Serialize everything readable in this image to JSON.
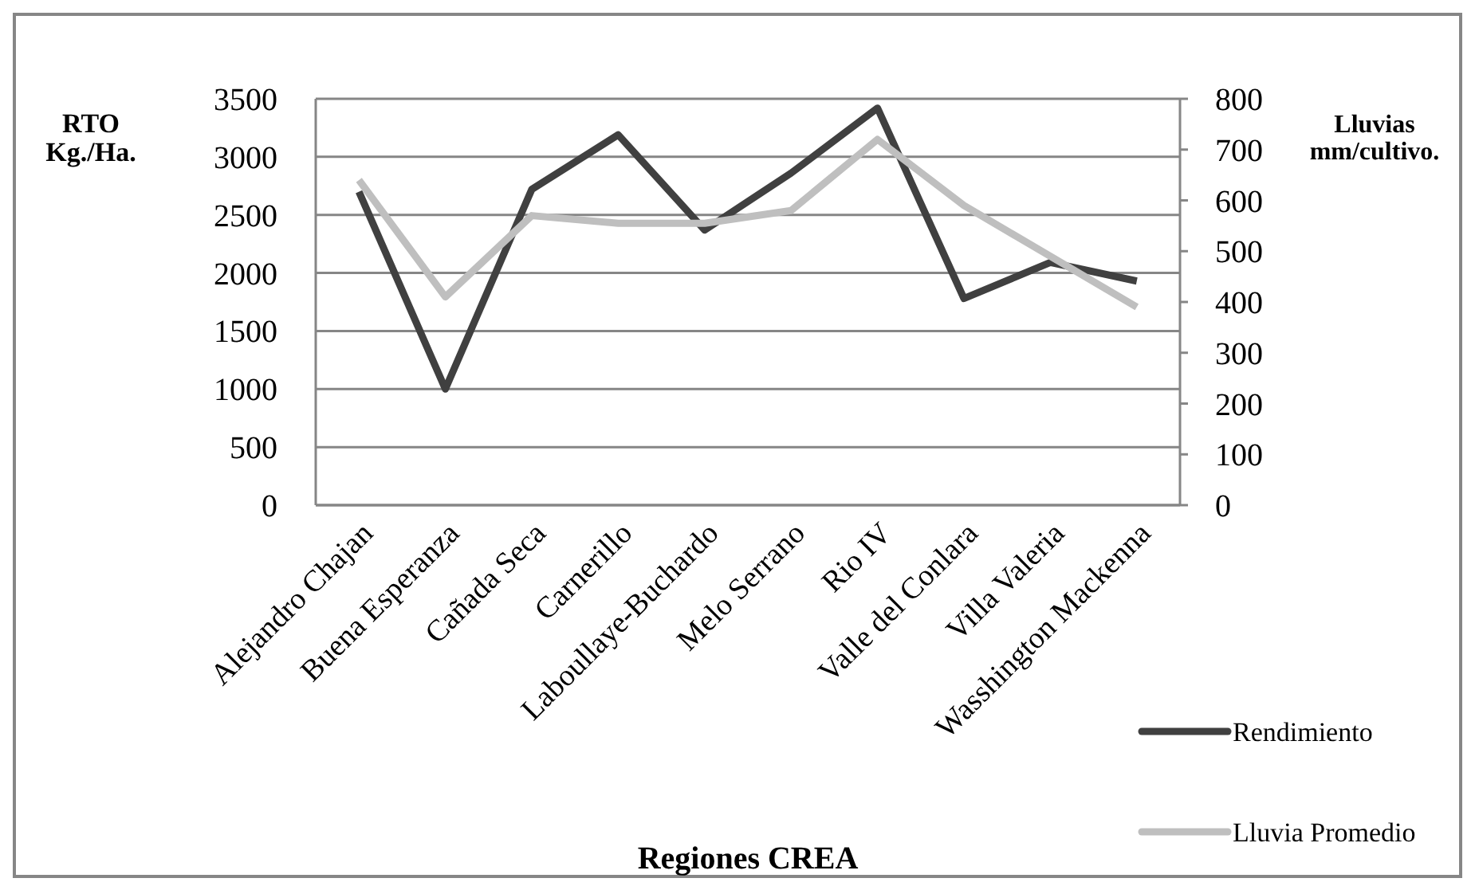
{
  "chart_data": {
    "type": "line",
    "xlabel": "Regiones CREA",
    "ylabel": "RTO\nKg./Ha.",
    "y2label": "Lluvias\nmm/cultivo.",
    "categories": [
      "Alejandro Chajan",
      "Buena Esperanza",
      "Cañada Seca",
      "Carnerillo",
      "Laboullaye-Buchardo",
      "Melo Serrano",
      "Rio IV",
      "Valle del Conlara",
      "Villa Valeria",
      "Wasshington Mackenna"
    ],
    "series": [
      {
        "name": "Rendimiento",
        "color": "#404040",
        "values": [
          2700,
          1000,
          2720,
          3190,
          2370,
          2860,
          3420,
          1780,
          2090,
          1930
        ]
      },
      {
        "name": "Lluvia Promedio",
        "color": "#bfbfbf",
        "axis": "y2",
        "values": [
          640,
          410,
          570,
          555,
          555,
          580,
          720,
          590,
          490,
          390
        ]
      }
    ],
    "ylim": [
      0,
      3500
    ],
    "yticks": [
      0,
      500,
      1000,
      1500,
      2000,
      2500,
      3000,
      3500
    ],
    "y2lim": [
      0,
      800
    ],
    "y2ticks": [
      0,
      100,
      200,
      300,
      400,
      500,
      600,
      700,
      800
    ],
    "grid": "y",
    "legend": "bottom right",
    "marker": "none",
    "line_style": "solid"
  }
}
